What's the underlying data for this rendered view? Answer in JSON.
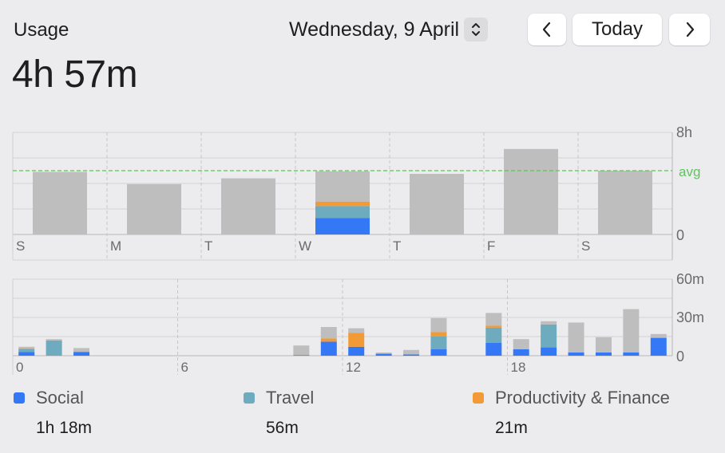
{
  "header": {
    "title": "Usage",
    "total": "4h 57m",
    "date": "Wednesday, 9 April",
    "today_label": "Today"
  },
  "colors": {
    "social": "#3478f6",
    "travel": "#6fabbe",
    "productivity": "#f19a36",
    "other": "#bebebe",
    "avg": "#5ec45e"
  },
  "chart_data": [
    {
      "type": "bar",
      "stacked": true,
      "categories": [
        "S",
        "M",
        "T",
        "W",
        "T",
        "F",
        "S"
      ],
      "y_unit": "h",
      "ylim": [
        0,
        8
      ],
      "ytick_labels": [
        "8h",
        "0"
      ],
      "avg_label": "avg",
      "avg_value": 5.0,
      "series": [
        {
          "name": "Social",
          "color": "#3478f6",
          "values": [
            0,
            0,
            0,
            1.3,
            0,
            0,
            0
          ]
        },
        {
          "name": "Travel",
          "color": "#6fabbe",
          "values": [
            0,
            0,
            0,
            0.93,
            0,
            0,
            0
          ]
        },
        {
          "name": "Productivity & Finance",
          "color": "#f19a36",
          "values": [
            0,
            0,
            0,
            0.35,
            0,
            0,
            0
          ]
        },
        {
          "color": "#bebebe",
          "values": [
            4.9,
            3.95,
            4.4,
            2.37,
            4.75,
            6.7,
            5.0
          ]
        }
      ]
    },
    {
      "type": "bar",
      "stacked": true,
      "x": [
        0,
        1,
        2,
        3,
        4,
        5,
        6,
        7,
        8,
        9,
        10,
        11,
        12,
        13,
        14,
        15,
        16,
        17,
        18,
        19,
        20,
        21,
        22,
        23
      ],
      "xtick_labels": [
        "0",
        "6",
        "12",
        "18"
      ],
      "y_unit": "m",
      "ylim": [
        0,
        60
      ],
      "ytick_labels": [
        "60m",
        "30m",
        "0"
      ],
      "series": [
        {
          "name": "Social",
          "color": "#3478f6",
          "values": [
            3,
            0,
            3,
            0,
            0,
            0,
            0,
            0,
            0,
            0,
            0.5,
            11,
            7,
            1.5,
            1,
            5,
            0,
            10,
            5,
            6.5,
            2.5,
            2.5,
            2.5,
            14
          ]
        },
        {
          "name": "Travel",
          "color": "#6fabbe",
          "values": [
            2,
            12,
            0,
            0,
            0,
            0,
            0,
            0,
            0,
            0,
            0,
            0,
            0,
            0,
            0,
            10,
            0,
            12,
            0,
            18,
            0,
            0,
            0,
            0
          ]
        },
        {
          "name": "Productivity & Finance",
          "color": "#f19a36",
          "values": [
            0.8,
            0,
            0,
            0,
            0,
            0,
            0,
            0,
            0,
            0,
            0,
            2.5,
            11,
            0,
            0,
            3.5,
            0,
            1.5,
            0,
            0,
            0,
            0,
            0,
            0
          ]
        },
        {
          "color": "#bebebe",
          "values": [
            1.2,
            1,
            3,
            0,
            0,
            0,
            0,
            0,
            0,
            0,
            7.5,
            9,
            3.5,
            1,
            3.5,
            11,
            0,
            10,
            8,
            2.5,
            23.5,
            12,
            34,
            3
          ]
        }
      ]
    }
  ],
  "legend": [
    {
      "name": "Social",
      "value": "1h 18m",
      "color": "#3478f6"
    },
    {
      "name": "Travel",
      "value": "56m",
      "color": "#6fabbe"
    },
    {
      "name": "Productivity & Finance",
      "value": "21m",
      "color": "#f19a36"
    }
  ]
}
